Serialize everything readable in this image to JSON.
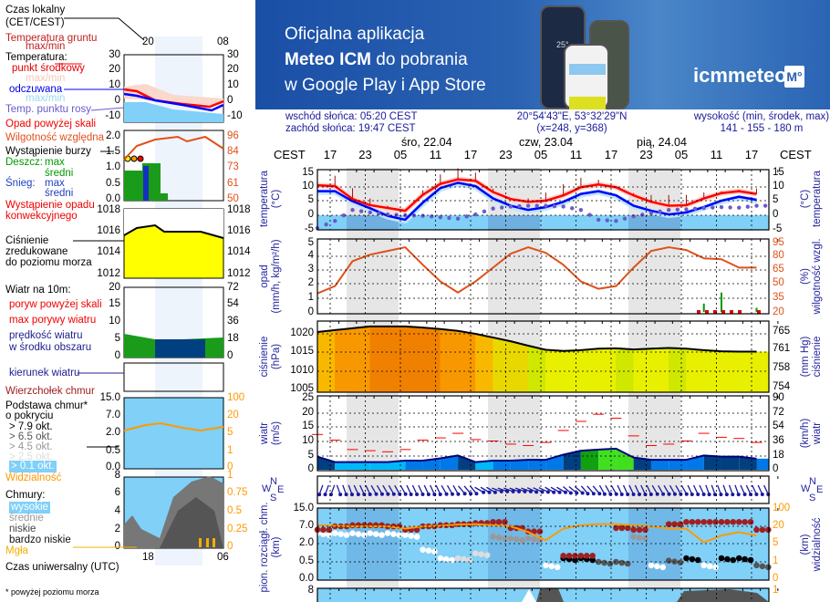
{
  "banner": {
    "line1": "Oficjalna aplikacja",
    "line2_bold": "Meteo ICM",
    "line2_rest": " do pobrania",
    "line3": "w Google Play i App Store",
    "logo": "icmmeteo",
    "logo_badge": "M°",
    "phone_temp": "25°"
  },
  "legend": {
    "local_time": "Czas lokalny",
    "local_time_zone": "(CET/CEST)",
    "local_hours": [
      "20",
      "02",
      "08"
    ],
    "ground_temp": "Temperatura gruntu",
    "ground_temp_mm": "max/min",
    "temperature": "Temperatura:",
    "midpoint": "punkt środkowy",
    "midpoint_mm": "max/min",
    "feels": "odczuwana",
    "feels_mm": "max/min",
    "dew": "Temp. punktu rosy",
    "precip_over": "Opad powyżej skali",
    "humidity": "Wilgotność względna",
    "storm": "Wystąpienie burzy",
    "rain": "Deszcz:",
    "rain_max": "max",
    "rain_avg": "średni",
    "snow": "Śnieg:",
    "snow_max": "max",
    "snow_avg": "średni",
    "convective1": "Wystąpienie opadu",
    "convective2": "konwekcyjnego",
    "pressure1": "Ciśnienie",
    "pressure2": "zredukowane",
    "pressure3": "do poziomu morza",
    "wind_title": "Wiatr na 10m:",
    "gust_over": "poryw powyżej skali",
    "gust_max": "max porywy wiatru",
    "wind_speed1": "prędkość wiatru",
    "wind_speed2": "w środku obszaru",
    "wind_dir": "kierunek wiatru",
    "cloud_top": "Wierzchołek chmur",
    "cloud_base1": "Podstawa chmur*",
    "cloud_base2": "o pokryciu",
    "okt": [
      "> 7.9 okt.",
      "> 6.5 okt.",
      "> 4.5 okt.",
      "> 2.5 okt.",
      "> 0.1 okt."
    ],
    "visibility": "Widzialność",
    "clouds": "Chmury:",
    "high": "wysokie",
    "mid": "średnie",
    "low": "niskie",
    "very_low": "bardzo niskie",
    "fog": "Mgła",
    "utc_hours": [
      "18",
      "00",
      "06"
    ],
    "utc": "Czas uniwersalny (UTC)",
    "footnote": "* powyżej poziomu morza",
    "axes": {
      "temp_l": [
        "30",
        "20",
        "10",
        "0",
        "-10"
      ],
      "temp_r": [
        "30",
        "20",
        "10",
        "0",
        "-10"
      ],
      "prec_l": [
        "2.0",
        "1.5",
        "1.0",
        "0.5",
        "0.0"
      ],
      "prec_r": [
        "96",
        "84",
        "73",
        "61",
        "50"
      ],
      "pres": [
        "1018",
        "1016",
        "1014",
        "1012"
      ],
      "wind_l": [
        "20",
        "15",
        "10",
        "5",
        "0"
      ],
      "wind_r": [
        "72",
        "54",
        "36",
        "18",
        "0"
      ],
      "cb_l": [
        "15.0",
        "7.0",
        "2.0",
        "0.5",
        "0.0"
      ],
      "cb_r": [
        "100",
        "20",
        "5",
        "1",
        "0"
      ],
      "cc_l": [
        "8",
        "6",
        "4",
        "2",
        "0"
      ],
      "cc_r": [
        "1",
        "0.75",
        "0.5",
        "0.25",
        "0"
      ]
    }
  },
  "info": {
    "sunrise": "wschód słońca: 05:20 CEST",
    "sunset": "zachód słońca: 19:47 CEST",
    "coords": "20°54'43\"E, 53°32'29\"N",
    "grid": "(x=248,  y=368)",
    "elev_label": "wysokość (min, środek, max)",
    "elev": "141 - 155 - 180 m"
  },
  "timeline": {
    "zone": "CEST",
    "days": [
      "śro, 22.04",
      "czw, 23.04",
      "pią, 24.04"
    ],
    "hours": [
      "17",
      "23",
      "05",
      "11",
      "17",
      "23",
      "05",
      "11",
      "17",
      "23",
      "05",
      "11",
      "17"
    ]
  },
  "axis_titles": {
    "temp_l": [
      "temperatura",
      "(°C)"
    ],
    "temp_r": [
      "(°C)",
      "temperatura"
    ],
    "prec_l": [
      "opad",
      "(mm/h, kg/m²/h)"
    ],
    "prec_r": [
      "(%)",
      "wilgotność wzgl."
    ],
    "pres_l": [
      "ciśnienie",
      "(hPa)"
    ],
    "pres_r": [
      "(mm Hg)",
      "ciśnienie"
    ],
    "wind_l": [
      "wiatr",
      "(m/s)"
    ],
    "wind_r": [
      "(km/h)",
      "wiatr"
    ],
    "cloud_l": [
      "pion. rozciągł. chm.",
      "(km)"
    ],
    "cloud_r": [
      "(km)",
      "widzialność"
    ],
    "compass": {
      "n": "N",
      "w": "W",
      "s": "S",
      "e": "E"
    }
  },
  "colors": {
    "temp": "#ff0000",
    "feels": "#0000ff",
    "dew": "#6a5acd",
    "humidity": "#e0501a",
    "pressure_line": "#000000",
    "gust": "#ff0000",
    "wind": "#000080",
    "visibility": "#ff9900",
    "cloud_top": "#a02020",
    "sky": "#80d0f8",
    "night": "#e6e6e6"
  },
  "chart_data": {
    "type": "line",
    "time": [
      "21.04 15:00",
      "21.04 18:00",
      "21.04 21:00",
      "22.04 00:00",
      "22.04 03:00",
      "22.04 06:00",
      "22.04 09:00",
      "22.04 12:00",
      "22.04 15:00",
      "22.04 18:00",
      "22.04 21:00",
      "23.04 00:00",
      "23.04 03:00",
      "23.04 06:00",
      "23.04 09:00",
      "23.04 12:00",
      "23.04 15:00",
      "23.04 18:00",
      "23.04 21:00",
      "24.04 00:00",
      "24.04 03:00",
      "24.04 06:00",
      "24.04 09:00",
      "24.04 12:00",
      "24.04 15:00",
      "24.04 18:00"
    ],
    "temperature_c": [
      10.7,
      10.4,
      5.8,
      3.6,
      2.6,
      1.6,
      7.3,
      11.2,
      12.8,
      12.3,
      8.3,
      5.8,
      4.8,
      5.2,
      7.1,
      10,
      11,
      10,
      7.1,
      4.8,
      3.4,
      3.6,
      6,
      7.9,
      8.6,
      7.6
    ],
    "feels_like_c": [
      8.6,
      8.6,
      5,
      2.5,
      -0.2,
      -1.6,
      4.5,
      9.7,
      11.6,
      10.4,
      6,
      3.4,
      1.9,
      2.9,
      4.8,
      7.6,
      8.6,
      7.1,
      3.4,
      1.6,
      0.3,
      1,
      2.9,
      5.2,
      6.6,
      5.5
    ],
    "dew_point_c": [
      -4.6,
      -2,
      1.9,
      1,
      0.3,
      0,
      -0.2,
      -0.7,
      -1.2,
      0.3,
      2.4,
      3.1,
      3.4,
      3.4,
      3.1,
      1.9,
      -1.6,
      -2,
      -0.4,
      0.8,
      1.9,
      2.1,
      2.6,
      2.9,
      2.7,
      3.4
    ],
    "temp_ylim": [
      -5,
      15
    ],
    "humidity_pct": [
      40,
      48,
      75,
      82,
      86,
      90,
      71,
      53,
      41,
      53,
      68,
      83,
      90,
      84,
      71,
      53,
      45,
      48,
      68,
      86,
      90,
      87,
      78,
      77,
      68,
      68
    ],
    "humidity_ylim": [
      20,
      95
    ],
    "precip_mm_h": [
      0,
      0,
      0,
      0,
      0,
      0,
      0,
      0,
      0,
      0,
      0,
      0,
      0,
      0,
      0,
      0,
      0,
      0,
      0,
      0,
      0,
      0,
      0.6,
      1.4,
      0,
      0.3
    ],
    "precip_ylim": [
      0,
      5
    ],
    "pressure_hpa": [
      1020.5,
      1021,
      1021.5,
      1022,
      1022,
      1022,
      1021.7,
      1021.3,
      1020.8,
      1020,
      1019,
      1018,
      1016.8,
      1015.7,
      1015.4,
      1015.6,
      1016,
      1016.1,
      1015.8,
      1016,
      1016.2,
      1016,
      1015.6,
      1015.3,
      1015.2,
      1015.2
    ],
    "pressure_ylim": [
      1005,
      1022
    ],
    "wind_ms": [
      4.6,
      2.7,
      2.7,
      2.7,
      2.7,
      3.2,
      3.2,
      4,
      5,
      2.7,
      3.2,
      3.2,
      3.5,
      3.5,
      5.3,
      6.7,
      7.1,
      7.4,
      4.3,
      3.5,
      3.5,
      3.5,
      5,
      4.6,
      4.6,
      3.9
    ],
    "gust_ms": [
      12.4,
      10.4,
      7.1,
      6.7,
      6.3,
      7.1,
      10.4,
      11.2,
      12.8,
      10.6,
      10.1,
      9,
      8.5,
      9.6,
      13.8,
      17,
      19.5,
      18.1,
      11.9,
      8.5,
      9,
      10.1,
      12.8,
      11.4,
      11,
      9.6
    ],
    "wind_ylim": [
      0,
      25
    ],
    "wind_dir_deg": [
      20,
      340,
      335,
      330,
      330,
      335,
      335,
      330,
      320,
      300,
      290,
      290,
      295,
      300,
      310,
      320,
      330,
      335,
      335,
      330,
      330,
      335,
      340,
      340,
      335,
      335
    ],
    "cloud_top_km": [
      6,
      7,
      7.5,
      7.5,
      7,
      6,
      7,
      7.5,
      8,
      8.5,
      9,
      6.5,
      5.5,
      null,
      1,
      1,
      null,
      6.5,
      6,
      null,
      8,
      9,
      9,
      9,
      9,
      6
    ],
    "cloud_base_km": [
      5,
      5,
      5,
      5,
      5,
      4.5,
      1.5,
      0.8,
      0.8,
      1.2,
      4,
      3.5,
      3.5,
      0.4,
      0.8,
      0.8,
      0.5,
      0.5,
      4,
      0.4,
      0.6,
      0.8,
      0.4,
      0.8,
      0.8,
      0.4
    ],
    "cloud_base_cover_okt": [
      "> 0.1",
      "> 0.1",
      "> 0.1",
      "> 0.1",
      "> 0.1",
      "> 0.1",
      "> 0.1",
      "> 0.1",
      "> 2.5",
      "> 2.5",
      "> 4.5",
      "> 4.5",
      "> 4.5",
      "> 0.1",
      "> 7.9",
      "> 7.9",
      "> 6.5",
      "> 6.5",
      "> 4.5",
      "> 0.1",
      "> 6.5",
      "> 7.9",
      "> 0.1",
      "> 7.9",
      "> 7.9",
      "> 6.5"
    ],
    "visibility_km": [
      25,
      22,
      20,
      20,
      20,
      18,
      20,
      22,
      28,
      30,
      25,
      20,
      15,
      8,
      18,
      25,
      30,
      30,
      25,
      20,
      18,
      18,
      6,
      12,
      15,
      12
    ],
    "cloud_ticks_km": [
      "15.0",
      "7.0",
      "2.0",
      "0.5",
      "0.0"
    ],
    "visibility_ticks_km": [
      "100",
      "20",
      "5",
      "1",
      "0"
    ],
    "temp_ticks": [
      "15",
      "10",
      "5",
      "0",
      "-5"
    ],
    "prec_ticks": [
      "5",
      "4",
      "3",
      "2",
      "1",
      "0"
    ],
    "hum_ticks": [
      "95",
      "80",
      "65",
      "50",
      "35",
      "20"
    ],
    "pres_ticks": [
      "1020",
      "1015",
      "1010",
      "1005"
    ],
    "mmhg_ticks": [
      "765",
      "761",
      "758",
      "754"
    ],
    "wind_ticks": [
      "25",
      "20",
      "15",
      "10",
      "5",
      "0"
    ],
    "kmh_ticks": [
      "90",
      "72",
      "54",
      "36",
      "18",
      "0"
    ],
    "bottom_tick_l": "8",
    "bottom_tick_r": "1",
    "grid": true
  }
}
